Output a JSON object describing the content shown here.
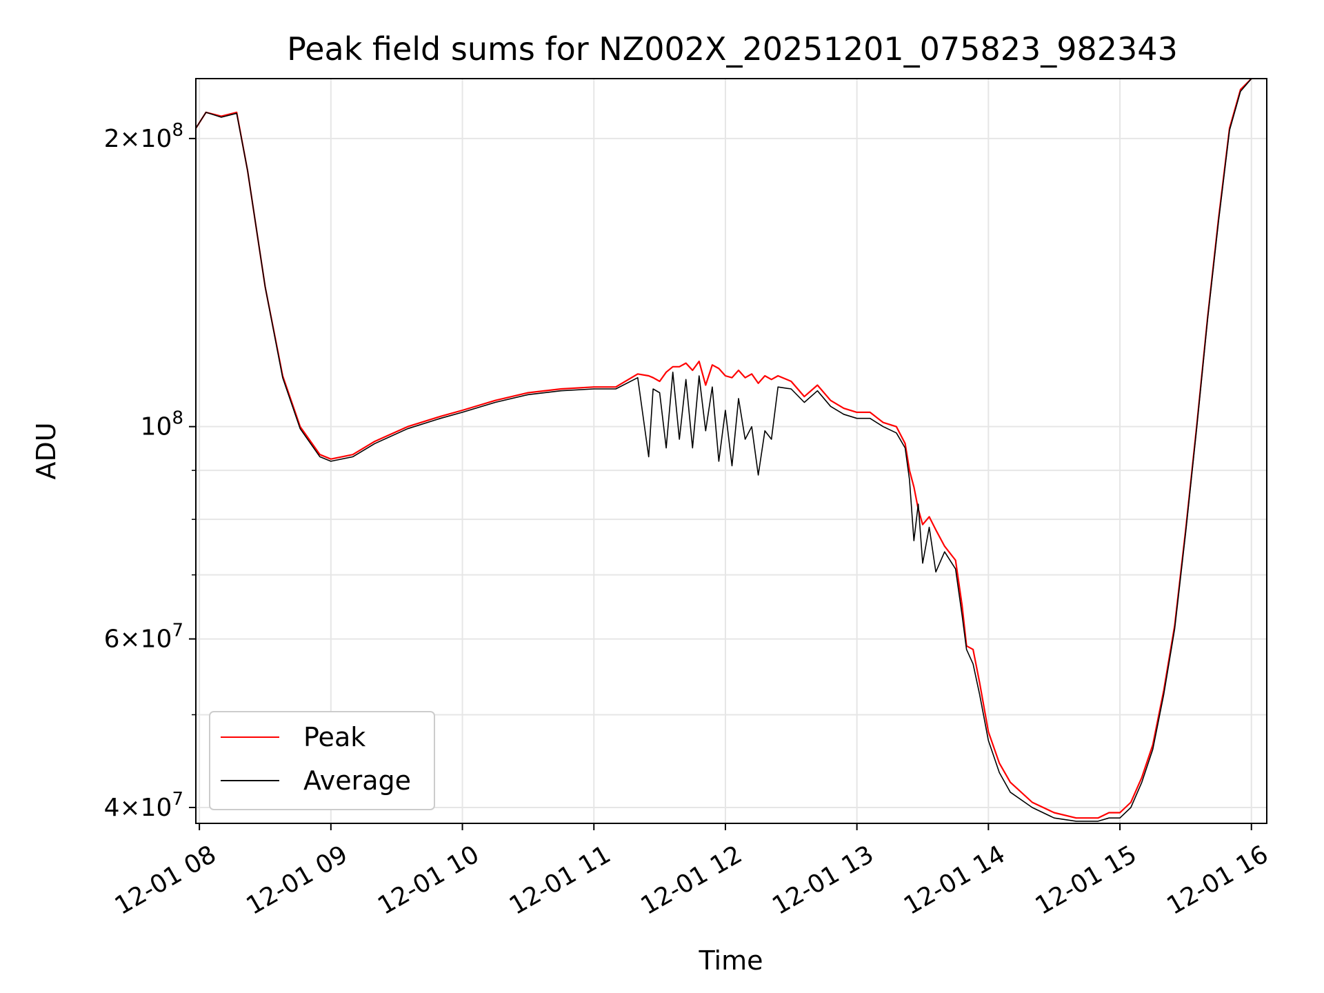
{
  "chart_data": {
    "type": "line",
    "title": "Peak field sums for NZ002X_20251201_075823_982343",
    "xlabel": "Time",
    "ylabel": "ADU",
    "yscale": "log",
    "grid": true,
    "legend_position": "lower-left",
    "xlim": [
      "2025-12-01 07:58:23",
      "2025-12-01 16:07:00"
    ],
    "ylim": [
      38500000,
      231000000
    ],
    "x_ticks": [
      "12-01 08",
      "12-01 09",
      "12-01 10",
      "12-01 11",
      "12-01 12",
      "12-01 13",
      "12-01 14",
      "12-01 15",
      "12-01 16"
    ],
    "y_ticks": [
      {
        "value": 40000000,
        "base": "4",
        "exp": "7"
      },
      {
        "value": 60000000,
        "base": "6",
        "exp": "7"
      },
      {
        "value": 100000000,
        "base": "",
        "exp": "8"
      },
      {
        "value": 200000000,
        "base": "2",
        "exp": "8"
      }
    ],
    "y_minor_ticks": [
      50000000,
      70000000,
      80000000,
      90000000
    ],
    "series": [
      {
        "name": "Peak",
        "color": "#ff0000",
        "x": [
          "2025-12-01 07:58:23",
          "2025-12-01 08:03:00",
          "2025-12-01 08:10:00",
          "2025-12-01 08:17:00",
          "2025-12-01 08:22:00",
          "2025-12-01 08:30:00",
          "2025-12-01 08:38:00",
          "2025-12-01 08:46:00",
          "2025-12-01 08:55:00",
          "2025-12-01 09:00:00",
          "2025-12-01 09:10:00",
          "2025-12-01 09:20:00",
          "2025-12-01 09:35:00",
          "2025-12-01 09:50:00",
          "2025-12-01 10:00:00",
          "2025-12-01 10:15:00",
          "2025-12-01 10:30:00",
          "2025-12-01 10:45:00",
          "2025-12-01 11:00:00",
          "2025-12-01 11:10:00",
          "2025-12-01 11:20:00",
          "2025-12-01 11:25:00",
          "2025-12-01 11:27:00",
          "2025-12-01 11:30:00",
          "2025-12-01 11:33:00",
          "2025-12-01 11:36:00",
          "2025-12-01 11:39:00",
          "2025-12-01 11:42:00",
          "2025-12-01 11:45:00",
          "2025-12-01 11:48:00",
          "2025-12-01 11:51:00",
          "2025-12-01 11:54:00",
          "2025-12-01 11:57:00",
          "2025-12-01 12:00:00",
          "2025-12-01 12:03:00",
          "2025-12-01 12:06:00",
          "2025-12-01 12:09:00",
          "2025-12-01 12:12:00",
          "2025-12-01 12:15:00",
          "2025-12-01 12:18:00",
          "2025-12-01 12:21:00",
          "2025-12-01 12:24:00",
          "2025-12-01 12:30:00",
          "2025-12-01 12:36:00",
          "2025-12-01 12:42:00",
          "2025-12-01 12:48:00",
          "2025-12-01 12:54:00",
          "2025-12-01 13:00:00",
          "2025-12-01 13:06:00",
          "2025-12-01 13:12:00",
          "2025-12-01 13:18:00",
          "2025-12-01 13:22:00",
          "2025-12-01 13:24:00",
          "2025-12-01 13:26:00",
          "2025-12-01 13:28:00",
          "2025-12-01 13:30:00",
          "2025-12-01 13:33:00",
          "2025-12-01 13:36:00",
          "2025-12-01 13:40:00",
          "2025-12-01 13:45:00",
          "2025-12-01 13:48:00",
          "2025-12-01 13:50:00",
          "2025-12-01 13:53:00",
          "2025-12-01 13:56:00",
          "2025-12-01 14:00:00",
          "2025-12-01 14:05:00",
          "2025-12-01 14:10:00",
          "2025-12-01 14:20:00",
          "2025-12-01 14:30:00",
          "2025-12-01 14:40:00",
          "2025-12-01 14:50:00",
          "2025-12-01 14:55:00",
          "2025-12-01 15:00:00",
          "2025-12-01 15:05:00",
          "2025-12-01 15:10:00",
          "2025-12-01 15:15:00",
          "2025-12-01 15:20:00",
          "2025-12-01 15:25:00",
          "2025-12-01 15:30:00",
          "2025-12-01 15:35:00",
          "2025-12-01 15:40:00",
          "2025-12-01 15:45:00",
          "2025-12-01 15:50:00",
          "2025-12-01 15:55:00",
          "2025-12-01 16:00:00"
        ],
        "y": [
          205000000,
          213000000,
          211000000,
          213000000,
          185000000,
          140000000,
          113000000,
          100000000,
          93500000,
          92500000,
          93500000,
          96500000,
          100000000,
          102500000,
          104000000,
          106500000,
          108500000,
          109500000,
          110000000,
          110000000,
          113500000,
          113000000,
          112500000,
          111500000,
          114000000,
          115500000,
          115500000,
          116500000,
          114500000,
          117000000,
          110500000,
          116000000,
          115000000,
          113000000,
          112500000,
          114500000,
          112500000,
          113500000,
          111000000,
          113000000,
          112000000,
          113000000,
          111500000,
          107500000,
          110500000,
          106500000,
          104500000,
          103500000,
          103500000,
          101000000,
          100000000,
          96000000,
          90000000,
          86500000,
          82000000,
          79000000,
          80500000,
          78000000,
          75000000,
          72500000,
          65000000,
          59000000,
          58500000,
          54000000,
          48000000,
          44500000,
          42500000,
          40500000,
          39500000,
          39000000,
          39000000,
          39500000,
          39500000,
          40500000,
          43000000,
          46500000,
          53000000,
          62000000,
          78000000,
          100000000,
          130000000,
          165000000,
          205000000,
          225000000,
          231000000
        ]
      },
      {
        "name": "Average",
        "color": "#000000",
        "x": [
          "2025-12-01 07:58:23",
          "2025-12-01 08:03:00",
          "2025-12-01 08:10:00",
          "2025-12-01 08:17:00",
          "2025-12-01 08:22:00",
          "2025-12-01 08:30:00",
          "2025-12-01 08:38:00",
          "2025-12-01 08:46:00",
          "2025-12-01 08:55:00",
          "2025-12-01 09:00:00",
          "2025-12-01 09:10:00",
          "2025-12-01 09:20:00",
          "2025-12-01 09:35:00",
          "2025-12-01 09:50:00",
          "2025-12-01 10:00:00",
          "2025-12-01 10:15:00",
          "2025-12-01 10:30:00",
          "2025-12-01 10:45:00",
          "2025-12-01 11:00:00",
          "2025-12-01 11:10:00",
          "2025-12-01 11:20:00",
          "2025-12-01 11:25:00",
          "2025-12-01 11:27:00",
          "2025-12-01 11:30:00",
          "2025-12-01 11:33:00",
          "2025-12-01 11:36:00",
          "2025-12-01 11:39:00",
          "2025-12-01 11:42:00",
          "2025-12-01 11:45:00",
          "2025-12-01 11:48:00",
          "2025-12-01 11:51:00",
          "2025-12-01 11:54:00",
          "2025-12-01 11:57:00",
          "2025-12-01 12:00:00",
          "2025-12-01 12:03:00",
          "2025-12-01 12:06:00",
          "2025-12-01 12:09:00",
          "2025-12-01 12:12:00",
          "2025-12-01 12:15:00",
          "2025-12-01 12:18:00",
          "2025-12-01 12:21:00",
          "2025-12-01 12:24:00",
          "2025-12-01 12:30:00",
          "2025-12-01 12:36:00",
          "2025-12-01 12:42:00",
          "2025-12-01 12:48:00",
          "2025-12-01 12:54:00",
          "2025-12-01 13:00:00",
          "2025-12-01 13:06:00",
          "2025-12-01 13:12:00",
          "2025-12-01 13:18:00",
          "2025-12-01 13:22:00",
          "2025-12-01 13:24:00",
          "2025-12-01 13:26:00",
          "2025-12-01 13:28:00",
          "2025-12-01 13:30:00",
          "2025-12-01 13:33:00",
          "2025-12-01 13:36:00",
          "2025-12-01 13:40:00",
          "2025-12-01 13:45:00",
          "2025-12-01 13:48:00",
          "2025-12-01 13:50:00",
          "2025-12-01 13:53:00",
          "2025-12-01 13:56:00",
          "2025-12-01 14:00:00",
          "2025-12-01 14:05:00",
          "2025-12-01 14:10:00",
          "2025-12-01 14:20:00",
          "2025-12-01 14:30:00",
          "2025-12-01 14:40:00",
          "2025-12-01 14:50:00",
          "2025-12-01 14:55:00",
          "2025-12-01 15:00:00",
          "2025-12-01 15:05:00",
          "2025-12-01 15:10:00",
          "2025-12-01 15:15:00",
          "2025-12-01 15:20:00",
          "2025-12-01 15:25:00",
          "2025-12-01 15:30:00",
          "2025-12-01 15:35:00",
          "2025-12-01 15:40:00",
          "2025-12-01 15:45:00",
          "2025-12-01 15:50:00",
          "2025-12-01 15:55:00",
          "2025-12-01 16:00:00"
        ],
        "y": [
          205000000,
          213000000,
          210500000,
          212500000,
          185000000,
          140000000,
          112500000,
          99500000,
          93000000,
          92000000,
          93000000,
          96000000,
          99500000,
          102000000,
          103500000,
          106000000,
          108000000,
          109000000,
          109500000,
          109500000,
          112500000,
          93000000,
          109500000,
          108500000,
          95000000,
          114000000,
          97000000,
          112000000,
          95000000,
          113000000,
          99000000,
          110000000,
          92000000,
          104000000,
          91000000,
          107000000,
          97000000,
          100000000,
          89000000,
          99000000,
          97000000,
          110000000,
          109500000,
          106000000,
          109000000,
          105000000,
          103000000,
          102000000,
          102000000,
          100000000,
          98500000,
          95000000,
          88000000,
          76000000,
          83000000,
          72000000,
          78500000,
          70500000,
          74000000,
          71000000,
          63500000,
          58500000,
          56500000,
          52500000,
          47000000,
          43500000,
          41500000,
          40000000,
          39000000,
          38700000,
          38700000,
          39000000,
          39000000,
          40000000,
          42500000,
          46000000,
          52500000,
          61500000,
          77500000,
          99500000,
          129500000,
          164000000,
          204000000,
          224000000,
          231000000
        ]
      }
    ]
  }
}
